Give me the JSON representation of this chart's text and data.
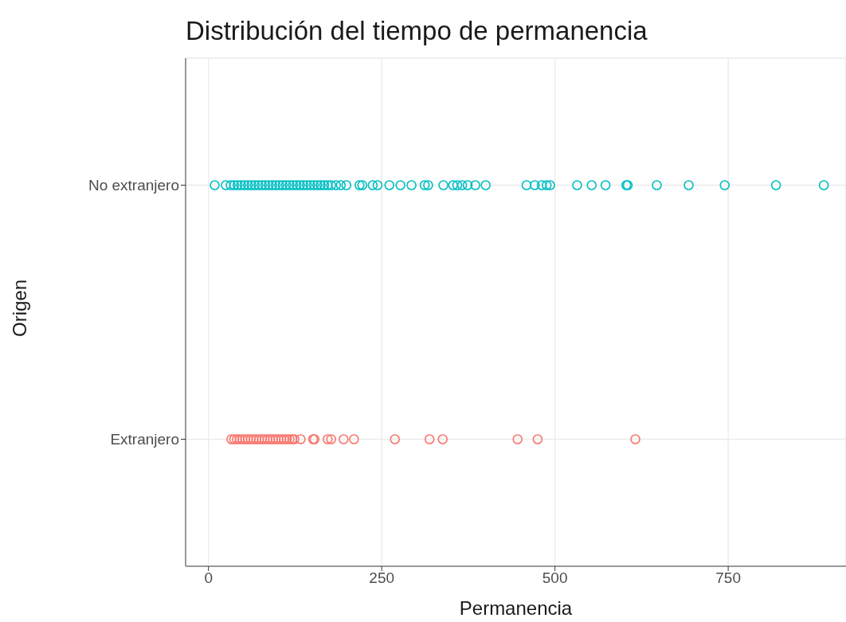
{
  "chart_data": {
    "type": "scatter",
    "orientation": "horizontal",
    "title": "Distribución del tiempo de permanencia",
    "xlabel": "Permanencia",
    "ylabel": "Origen",
    "categories": [
      "No extranjero",
      "Extranjero"
    ],
    "xlim": [
      -33,
      920
    ],
    "xticks": [
      0,
      250,
      500,
      750
    ],
    "grid": true,
    "legend": false,
    "marker": "circle",
    "series": [
      {
        "color": "#00bfc4",
        "x": [
          "No extranjero",
          "No extranjero",
          "No extranjero",
          "No extranjero",
          "No extranjero",
          "No extranjero",
          "No extranjero",
          "No extranjero",
          "No extranjero",
          "No extranjero",
          "No extranjero",
          "No extranjero",
          "No extranjero",
          "No extranjero",
          "No extranjero",
          "No extranjero",
          "No extranjero",
          "No extranjero",
          "No extranjero",
          "No extranjero",
          "No extranjero",
          "No extranjero",
          "No extranjero",
          "No extranjero",
          "No extranjero",
          "No extranjero",
          "No extranjero",
          "No extranjero",
          "No extranjero",
          "No extranjero",
          "No extranjero",
          "No extranjero",
          "No extranjero",
          "No extranjero",
          "No extranjero",
          "No extranjero",
          "No extranjero",
          "No extranjero",
          "No extranjero",
          "No extranjero",
          "No extranjero",
          "No extranjero",
          "No extranjero",
          "No extranjero",
          "No extranjero",
          "No extranjero",
          "No extranjero",
          "No extranjero",
          "No extranjero",
          "No extranjero",
          "No extranjero",
          "No extranjero",
          "No extranjero",
          "No extranjero",
          "No extranjero",
          "No extranjero",
          "No extranjero",
          "No extranjero",
          "No extranjero",
          "No extranjero",
          "No extranjero",
          "No extranjero",
          "No extranjero",
          "No extranjero",
          "No extranjero",
          "No extranjero"
        ],
        "values": [
          9,
          25,
          32,
          37,
          42,
          47,
          52,
          57,
          62,
          67,
          72,
          77,
          82,
          87,
          92,
          97,
          102,
          107,
          112,
          117,
          122,
          127,
          132,
          137,
          142,
          147,
          152,
          157,
          162,
          167,
          172,
          177,
          184,
          191,
          199,
          218,
          222,
          237,
          244,
          261,
          277,
          293,
          312,
          317,
          339,
          353,
          359,
          366,
          374,
          385,
          400,
          459,
          471,
          481,
          488,
          493,
          532,
          553,
          573,
          603,
          605,
          647,
          693,
          745,
          819,
          888
        ]
      },
      {
        "color": "#f8766d",
        "x": [
          "Extranjero",
          "Extranjero",
          "Extranjero",
          "Extranjero",
          "Extranjero",
          "Extranjero",
          "Extranjero",
          "Extranjero",
          "Extranjero",
          "Extranjero",
          "Extranjero",
          "Extranjero",
          "Extranjero",
          "Extranjero",
          "Extranjero",
          "Extranjero",
          "Extranjero",
          "Extranjero",
          "Extranjero",
          "Extranjero",
          "Extranjero",
          "Extranjero",
          "Extranjero",
          "Extranjero",
          "Extranjero",
          "Extranjero",
          "Extranjero",
          "Extranjero",
          "Extranjero",
          "Extranjero",
          "Extranjero",
          "Extranjero",
          "Extranjero",
          "Extranjero",
          "Extranjero",
          "Extranjero",
          "Extranjero"
        ],
        "values": [
          33,
          37,
          41,
          45,
          49,
          53,
          57,
          61,
          65,
          69,
          73,
          77,
          81,
          85,
          89,
          93,
          97,
          101,
          105,
          109,
          113,
          117,
          121,
          124,
          133,
          151,
          153,
          172,
          177,
          195,
          210,
          269,
          319,
          338,
          446,
          475,
          616
        ]
      }
    ]
  }
}
